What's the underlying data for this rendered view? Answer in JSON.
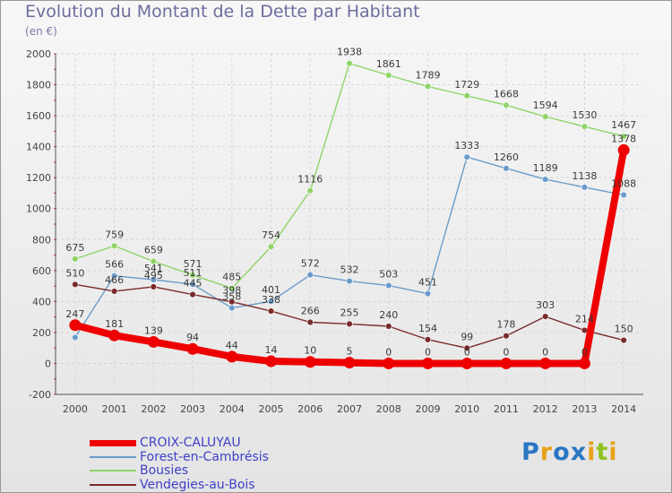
{
  "title": "Evolution du Montant de la Dette par Habitant",
  "unit": "(en €)",
  "logo": {
    "text": "Proxiti",
    "letters": [
      "P",
      "r",
      "o",
      "x",
      "i",
      "t",
      "i"
    ],
    "colors": [
      "#2a77c4",
      "#e8a21a",
      "#2a77c4",
      "#2a77c4",
      "#e8a21a",
      "#8fc21f",
      "#e8a21a"
    ]
  },
  "chart_data": {
    "type": "line",
    "title": "Evolution du Montant de la Dette par Habitant",
    "ylabel": "(en €)",
    "xlabel": "",
    "x": [
      "2000",
      "2001",
      "2002",
      "2003",
      "2004",
      "2005",
      "2006",
      "2007",
      "2008",
      "2009",
      "2010",
      "2011",
      "2012",
      "2013",
      "2014"
    ],
    "ylim": [
      -200,
      2000
    ],
    "yticks": [
      "-200",
      "0",
      "200",
      "400",
      "600",
      "800",
      "1000",
      "1200",
      "1400",
      "1600",
      "1800",
      "2000"
    ],
    "grid": true,
    "legend": "bottom-left",
    "series": [
      {
        "name": "CROIX-CALUYAU",
        "color": "#ee0000",
        "values": [
          247,
          181,
          139,
          94,
          44,
          14,
          10,
          5,
          0,
          0,
          0,
          0,
          0,
          0,
          1378
        ],
        "labels": [
          "247",
          "181",
          "139",
          "94",
          "44",
          "14",
          "10",
          "5",
          "0",
          "0",
          "0",
          "0",
          "0",
          "0",
          "1378"
        ]
      },
      {
        "name": "Forest-en-Cambrésis",
        "color": "#6a9ccc",
        "values": [
          168,
          566,
          541,
          511,
          358,
          401,
          572,
          532,
          503,
          451,
          1333,
          1260,
          1189,
          1138,
          1088
        ],
        "labels": [
          "",
          "566",
          "541",
          "511",
          "358",
          "401",
          "572",
          "532",
          "503",
          "451",
          "1333",
          "1260",
          "1189",
          "1138",
          "1088"
        ]
      },
      {
        "name": "Bousies",
        "color": "#8fd468",
        "values": [
          675,
          759,
          659,
          571,
          485,
          754,
          1116,
          1938,
          1861,
          1789,
          1729,
          1668,
          1594,
          1530,
          1467
        ],
        "labels": [
          "675",
          "759",
          "659",
          "571",
          "485",
          "754",
          "1116",
          "1938",
          "1861",
          "1789",
          "1729",
          "1668",
          "1594",
          "1530",
          "1467"
        ]
      },
      {
        "name": "Vendegies-au-Bois",
        "color": "#7a2a2a",
        "values": [
          510,
          466,
          495,
          445,
          398,
          338,
          266,
          255,
          240,
          154,
          99,
          178,
          303,
          214,
          150
        ],
        "labels": [
          "510",
          "466",
          "495",
          "445",
          "398",
          "338",
          "266",
          "255",
          "240",
          "154",
          "99",
          "178",
          "303",
          "214",
          "150"
        ]
      }
    ]
  }
}
